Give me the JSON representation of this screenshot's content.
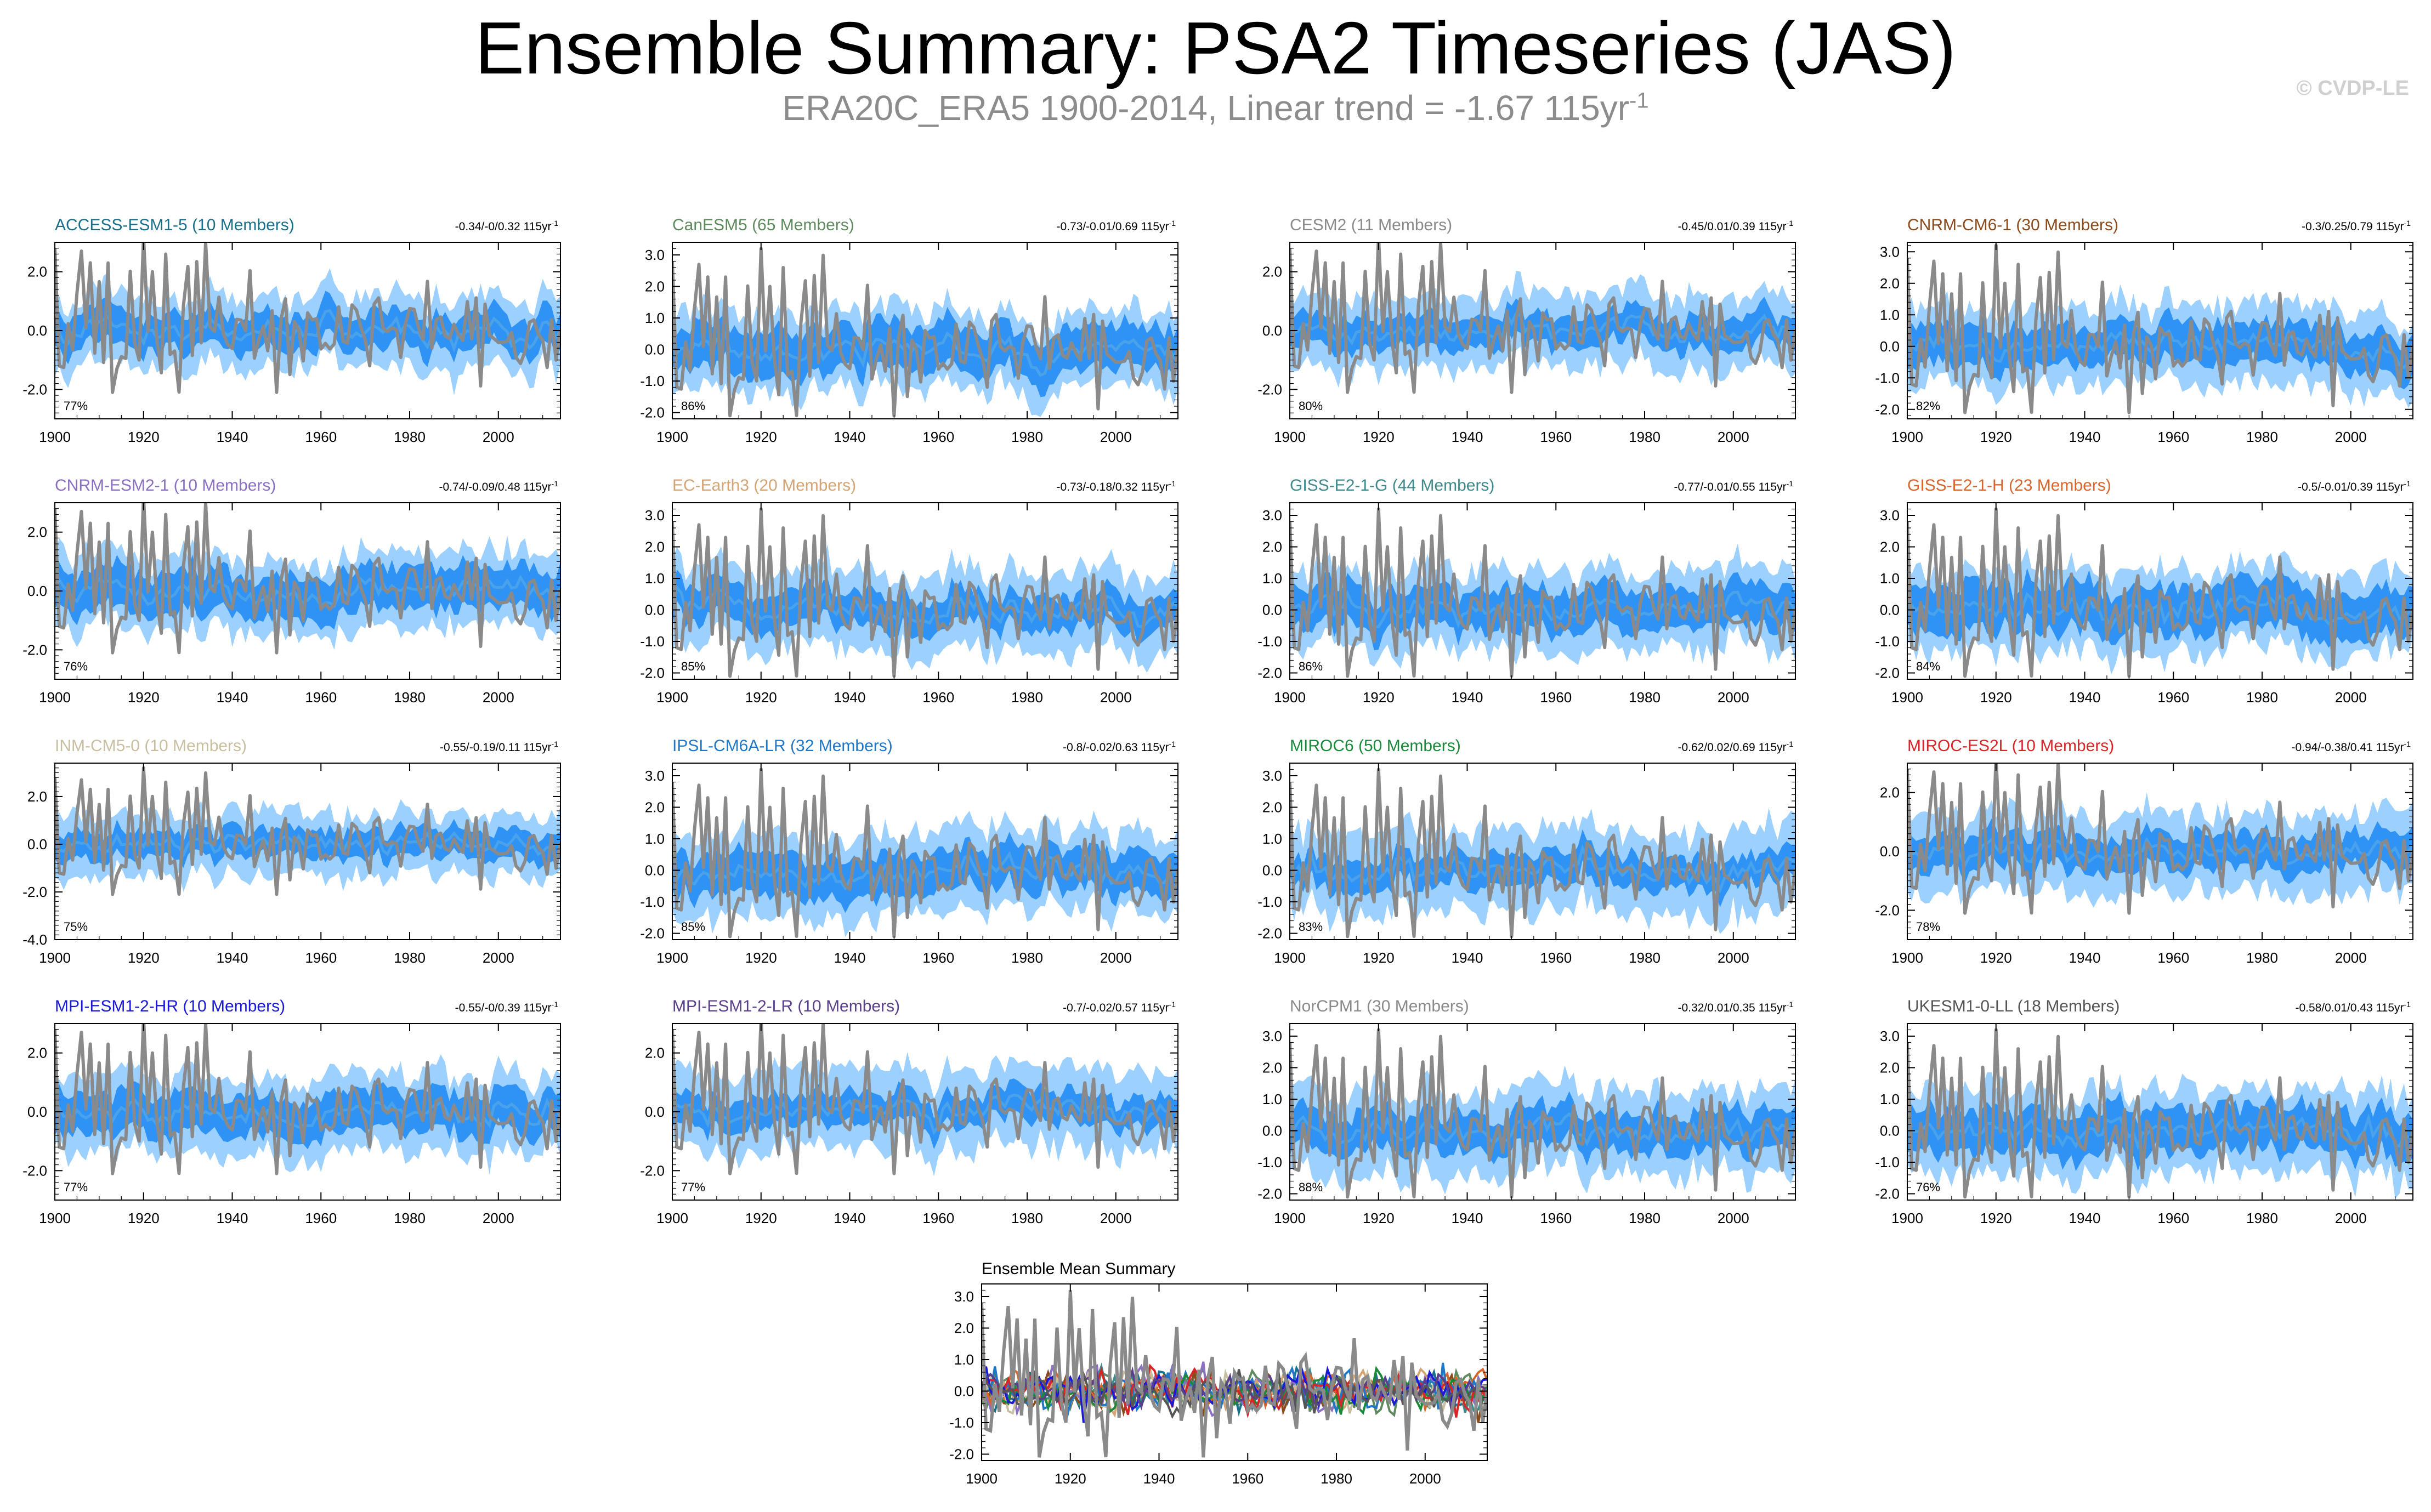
{
  "page": {
    "title": "Ensemble Summary: PSA2 Timeseries (JAS)",
    "subtitle_main": "ERA20C_ERA5 1900-2014, Linear trend = -1.67 115yr",
    "subtitle_exponent": "-1",
    "copyright": "© CVDP-LE"
  },
  "colors": {
    "observed": "#8a8a8a",
    "band_outer": "#9cd0ff",
    "band_inner": "#2f93f5",
    "ensemble_mean": "#4aa2ea"
  },
  "chart_data": [
    {
      "type": "area",
      "title": "ACCESS-ESM1-5 (10 Members)",
      "title_color": "#1a6f8a",
      "trend": "-0.34/-0/0.32 115yr",
      "trend_exponent": "-1",
      "percent": "77%",
      "ylim": [
        -3.0,
        3.0
      ],
      "yticks": [
        2.0,
        0.0,
        -2.0
      ],
      "ytick_labels": [
        "2.0",
        "0.0",
        "-2.0"
      ],
      "xlim": [
        1900,
        2014
      ],
      "xticks": [
        1900,
        1920,
        1940,
        1960,
        1980,
        2000
      ],
      "xtick_labels": [
        "1900",
        "1920",
        "1940",
        "1960",
        "1980",
        "2000"
      ],
      "series": [
        "observed PSA2 index (gray line)",
        "ensemble 10-90% range (light blue)",
        "ensemble 25-75% range (dark blue)",
        "ensemble mean (blue line)"
      ]
    },
    {
      "type": "area",
      "title": "CanESM5 (65 Members)",
      "title_color": "#5e8a5e",
      "trend": "-0.73/-0.01/0.69 115yr",
      "trend_exponent": "-1",
      "percent": "86%",
      "ylim": [
        -2.2,
        3.4
      ],
      "yticks": [
        3.0,
        2.0,
        1.0,
        0.0,
        -1.0,
        -2.0
      ],
      "ytick_labels": [
        "3.0",
        "2.0",
        "1.0",
        "0.0",
        "-1.0",
        "-2.0"
      ],
      "xlim": [
        1900,
        2014
      ],
      "xticks": [
        1900,
        1920,
        1940,
        1960,
        1980,
        2000
      ],
      "xtick_labels": [
        "1900",
        "1920",
        "1940",
        "1960",
        "1980",
        "2000"
      ],
      "series": [
        "observed PSA2 index (gray line)",
        "ensemble 10-90% range (light blue)",
        "ensemble 25-75% range (dark blue)",
        "ensemble mean (blue line)"
      ]
    },
    {
      "type": "area",
      "title": "CESM2 (11 Members)",
      "title_color": "#8a8a8a",
      "trend": "-0.45/0.01/0.39 115yr",
      "trend_exponent": "-1",
      "percent": "80%",
      "ylim": [
        -3.0,
        3.0
      ],
      "yticks": [
        2.0,
        0.0,
        -2.0
      ],
      "ytick_labels": [
        "2.0",
        "0.0",
        "-2.0"
      ],
      "xlim": [
        1900,
        2014
      ],
      "xticks": [
        1900,
        1920,
        1940,
        1960,
        1980,
        2000
      ],
      "xtick_labels": [
        "1900",
        "1920",
        "1940",
        "1960",
        "1980",
        "2000"
      ],
      "series": [
        "observed PSA2 index (gray line)",
        "ensemble 10-90% range (light blue)",
        "ensemble 25-75% range (dark blue)",
        "ensemble mean (blue line)"
      ]
    },
    {
      "type": "area",
      "title": "CNRM-CM6-1 (30 Members)",
      "title_color": "#8b4a1c",
      "trend": "-0.3/0.25/0.79 115yr",
      "trend_exponent": "-1",
      "percent": "82%",
      "ylim": [
        -2.3,
        3.3
      ],
      "yticks": [
        3.0,
        2.0,
        1.0,
        0.0,
        -1.0,
        -2.0
      ],
      "ytick_labels": [
        "3.0",
        "2.0",
        "1.0",
        "0.0",
        "-1.0",
        "-2.0"
      ],
      "xlim": [
        1900,
        2014
      ],
      "xticks": [
        1900,
        1920,
        1940,
        1960,
        1980,
        2000
      ],
      "xtick_labels": [
        "1900",
        "1920",
        "1940",
        "1960",
        "1980",
        "2000"
      ],
      "series": [
        "observed PSA2 index (gray line)",
        "ensemble 10-90% range (light blue)",
        "ensemble 25-75% range (dark blue)",
        "ensemble mean (blue line)"
      ]
    },
    {
      "type": "area",
      "title": "CNRM-ESM2-1 (10 Members)",
      "title_color": "#8a6fc2",
      "trend": "-0.74/-0.09/0.48 115yr",
      "trend_exponent": "-1",
      "percent": "76%",
      "ylim": [
        -3.0,
        3.0
      ],
      "yticks": [
        2.0,
        0.0,
        -2.0
      ],
      "ytick_labels": [
        "2.0",
        "0.0",
        "-2.0"
      ],
      "xlim": [
        1900,
        2014
      ],
      "xticks": [
        1900,
        1920,
        1940,
        1960,
        1980,
        2000
      ],
      "xtick_labels": [
        "1900",
        "1920",
        "1940",
        "1960",
        "1980",
        "2000"
      ],
      "series": [
        "observed PSA2 index (gray line)",
        "ensemble 10-90% range (light blue)",
        "ensemble 25-75% range (dark blue)",
        "ensemble mean (blue line)"
      ]
    },
    {
      "type": "area",
      "title": "EC-Earth3 (20 Members)",
      "title_color": "#d4a574",
      "trend": "-0.73/-0.18/0.32 115yr",
      "trend_exponent": "-1",
      "percent": "85%",
      "ylim": [
        -2.2,
        3.4
      ],
      "yticks": [
        3.0,
        2.0,
        1.0,
        0.0,
        -1.0,
        -2.0
      ],
      "ytick_labels": [
        "3.0",
        "2.0",
        "1.0",
        "0.0",
        "-1.0",
        "-2.0"
      ],
      "xlim": [
        1900,
        2014
      ],
      "xticks": [
        1900,
        1920,
        1940,
        1960,
        1980,
        2000
      ],
      "xtick_labels": [
        "1900",
        "1920",
        "1940",
        "1960",
        "1980",
        "2000"
      ],
      "series": [
        "observed PSA2 index (gray line)",
        "ensemble 10-90% range (light blue)",
        "ensemble 25-75% range (dark blue)",
        "ensemble mean (blue line)"
      ]
    },
    {
      "type": "area",
      "title": "GISS-E2-1-G (44 Members)",
      "title_color": "#3f8a8a",
      "trend": "-0.77/-0.01/0.55 115yr",
      "trend_exponent": "-1",
      "percent": "86%",
      "ylim": [
        -2.2,
        3.4
      ],
      "yticks": [
        3.0,
        2.0,
        1.0,
        0.0,
        -1.0,
        -2.0
      ],
      "ytick_labels": [
        "3.0",
        "2.0",
        "1.0",
        "0.0",
        "-1.0",
        "-2.0"
      ],
      "xlim": [
        1900,
        2014
      ],
      "xticks": [
        1900,
        1920,
        1940,
        1960,
        1980,
        2000
      ],
      "xtick_labels": [
        "1900",
        "1920",
        "1940",
        "1960",
        "1980",
        "2000"
      ],
      "series": [
        "observed PSA2 index (gray line)",
        "ensemble 10-90% range (light blue)",
        "ensemble 25-75% range (dark blue)",
        "ensemble mean (blue line)"
      ]
    },
    {
      "type": "area",
      "title": "GISS-E2-1-H (23 Members)",
      "title_color": "#d8662c",
      "trend": "-0.5/-0.01/0.39 115yr",
      "trend_exponent": "-1",
      "percent": "84%",
      "ylim": [
        -2.2,
        3.4
      ],
      "yticks": [
        3.0,
        2.0,
        1.0,
        0.0,
        -1.0,
        -2.0
      ],
      "ytick_labels": [
        "3.0",
        "2.0",
        "1.0",
        "0.0",
        "-1.0",
        "-2.0"
      ],
      "xlim": [
        1900,
        2014
      ],
      "xticks": [
        1900,
        1920,
        1940,
        1960,
        1980,
        2000
      ],
      "xtick_labels": [
        "1900",
        "1920",
        "1940",
        "1960",
        "1980",
        "2000"
      ],
      "series": [
        "observed PSA2 index (gray line)",
        "ensemble 10-90% range (light blue)",
        "ensemble 25-75% range (dark blue)",
        "ensemble mean (blue line)"
      ]
    },
    {
      "type": "area",
      "title": "INM-CM5-0 (10 Members)",
      "title_color": "#c8bfa0",
      "trend": "-0.55/-0.19/0.11 115yr",
      "trend_exponent": "-1",
      "percent": "75%",
      "ylim": [
        -4.0,
        3.4
      ],
      "yticks": [
        2.0,
        0.0,
        -2.0,
        -4.0
      ],
      "ytick_labels": [
        "2.0",
        "0.0",
        "-2.0",
        "-4.0"
      ],
      "xlim": [
        1900,
        2014
      ],
      "xticks": [
        1900,
        1920,
        1940,
        1960,
        1980,
        2000
      ],
      "xtick_labels": [
        "1900",
        "1920",
        "1940",
        "1960",
        "1980",
        "2000"
      ],
      "series": [
        "observed PSA2 index (gray line)",
        "ensemble 10-90% range (light blue)",
        "ensemble 25-75% range (dark blue)",
        "ensemble mean (blue line)"
      ]
    },
    {
      "type": "area",
      "title": "IPSL-CM6A-LR (32 Members)",
      "title_color": "#1f77c8",
      "trend": "-0.8/-0.02/0.63 115yr",
      "trend_exponent": "-1",
      "percent": "85%",
      "ylim": [
        -2.2,
        3.4
      ],
      "yticks": [
        3.0,
        2.0,
        1.0,
        0.0,
        -1.0,
        -2.0
      ],
      "ytick_labels": [
        "3.0",
        "2.0",
        "1.0",
        "0.0",
        "-1.0",
        "-2.0"
      ],
      "xlim": [
        1900,
        2014
      ],
      "xticks": [
        1900,
        1920,
        1940,
        1960,
        1980,
        2000
      ],
      "xtick_labels": [
        "1900",
        "1920",
        "1940",
        "1960",
        "1980",
        "2000"
      ],
      "series": [
        "observed PSA2 index (gray line)",
        "ensemble 10-90% range (light blue)",
        "ensemble 25-75% range (dark blue)",
        "ensemble mean (blue line)"
      ]
    },
    {
      "type": "area",
      "title": "MIROC6 (50 Members)",
      "title_color": "#1a8a3a",
      "trend": "-0.62/0.02/0.69 115yr",
      "trend_exponent": "-1",
      "percent": "83%",
      "ylim": [
        -2.2,
        3.4
      ],
      "yticks": [
        3.0,
        2.0,
        1.0,
        0.0,
        -1.0,
        -2.0
      ],
      "ytick_labels": [
        "3.0",
        "2.0",
        "1.0",
        "0.0",
        "-1.0",
        "-2.0"
      ],
      "xlim": [
        1900,
        2014
      ],
      "xticks": [
        1900,
        1920,
        1940,
        1960,
        1980,
        2000
      ],
      "xtick_labels": [
        "1900",
        "1920",
        "1940",
        "1960",
        "1980",
        "2000"
      ],
      "series": [
        "observed PSA2 index (gray line)",
        "ensemble 10-90% range (light blue)",
        "ensemble 25-75% range (dark blue)",
        "ensemble mean (blue line)"
      ]
    },
    {
      "type": "area",
      "title": "MIROC-ES2L (10 Members)",
      "title_color": "#d62728",
      "trend": "-0.94/-0.38/0.41 115yr",
      "trend_exponent": "-1",
      "percent": "78%",
      "ylim": [
        -3.0,
        3.0
      ],
      "yticks": [
        2.0,
        0.0,
        -2.0
      ],
      "ytick_labels": [
        "2.0",
        "0.0",
        "-2.0"
      ],
      "xlim": [
        1900,
        2014
      ],
      "xticks": [
        1900,
        1920,
        1940,
        1960,
        1980,
        2000
      ],
      "xtick_labels": [
        "1900",
        "1920",
        "1940",
        "1960",
        "1980",
        "2000"
      ],
      "series": [
        "observed PSA2 index (gray line)",
        "ensemble 10-90% range (light blue)",
        "ensemble 25-75% range (dark blue)",
        "ensemble mean (blue line)"
      ]
    },
    {
      "type": "area",
      "title": "MPI-ESM1-2-HR (10 Members)",
      "title_color": "#1a1ad6",
      "trend": "-0.55/-0/0.39 115yr",
      "trend_exponent": "-1",
      "percent": "77%",
      "ylim": [
        -3.0,
        3.0
      ],
      "yticks": [
        2.0,
        0.0,
        -2.0
      ],
      "ytick_labels": [
        "2.0",
        "0.0",
        "-2.0"
      ],
      "xlim": [
        1900,
        2014
      ],
      "xticks": [
        1900,
        1920,
        1940,
        1960,
        1980,
        2000
      ],
      "xtick_labels": [
        "1900",
        "1920",
        "1940",
        "1960",
        "1980",
        "2000"
      ],
      "series": [
        "observed PSA2 index (gray line)",
        "ensemble 10-90% range (light blue)",
        "ensemble 25-75% range (dark blue)",
        "ensemble mean (blue line)"
      ]
    },
    {
      "type": "area",
      "title": "MPI-ESM1-2-LR (10 Members)",
      "title_color": "#5a3f8a",
      "trend": "-0.7/-0.02/0.57 115yr",
      "trend_exponent": "-1",
      "percent": "77%",
      "ylim": [
        -3.0,
        3.0
      ],
      "yticks": [
        2.0,
        0.0,
        -2.0
      ],
      "ytick_labels": [
        "2.0",
        "0.0",
        "-2.0"
      ],
      "xlim": [
        1900,
        2014
      ],
      "xticks": [
        1900,
        1920,
        1940,
        1960,
        1980,
        2000
      ],
      "xtick_labels": [
        "1900",
        "1920",
        "1940",
        "1960",
        "1980",
        "2000"
      ],
      "series": [
        "observed PSA2 index (gray line)",
        "ensemble 10-90% range (light blue)",
        "ensemble 25-75% range (dark blue)",
        "ensemble mean (blue line)"
      ]
    },
    {
      "type": "area",
      "title": "NorCPM1 (30 Members)",
      "title_color": "#8a8a8a",
      "trend": "-0.32/0.01/0.35 115yr",
      "trend_exponent": "-1",
      "percent": "88%",
      "ylim": [
        -2.2,
        3.4
      ],
      "yticks": [
        3.0,
        2.0,
        1.0,
        0.0,
        -1.0,
        -2.0
      ],
      "ytick_labels": [
        "3.0",
        "2.0",
        "1.0",
        "0.0",
        "-1.0",
        "-2.0"
      ],
      "xlim": [
        1900,
        2014
      ],
      "xticks": [
        1900,
        1920,
        1940,
        1960,
        1980,
        2000
      ],
      "xtick_labels": [
        "1900",
        "1920",
        "1940",
        "1960",
        "1980",
        "2000"
      ],
      "series": [
        "observed PSA2 index (gray line)",
        "ensemble 10-90% range (light blue)",
        "ensemble 25-75% range (dark blue)",
        "ensemble mean (blue line)"
      ]
    },
    {
      "type": "area",
      "title": "UKESM1-0-LL (18 Members)",
      "title_color": "#555555",
      "trend": "-0.58/0.01/0.43 115yr",
      "trend_exponent": "-1",
      "percent": "76%",
      "ylim": [
        -2.2,
        3.4
      ],
      "yticks": [
        3.0,
        2.0,
        1.0,
        0.0,
        -1.0,
        -2.0
      ],
      "ytick_labels": [
        "3.0",
        "2.0",
        "1.0",
        "0.0",
        "-1.0",
        "-2.0"
      ],
      "xlim": [
        1900,
        2014
      ],
      "xticks": [
        1900,
        1920,
        1940,
        1960,
        1980,
        2000
      ],
      "xtick_labels": [
        "1900",
        "1920",
        "1940",
        "1960",
        "1980",
        "2000"
      ],
      "series": [
        "observed PSA2 index (gray line)",
        "ensemble 10-90% range (light blue)",
        "ensemble 25-75% range (dark blue)",
        "ensemble mean (blue line)"
      ]
    }
  ],
  "summary_chart": {
    "type": "line",
    "title": "Ensemble Mean Summary",
    "ylim": [
      -2.2,
      3.4
    ],
    "yticks": [
      3.0,
      2.0,
      1.0,
      0.0,
      -1.0,
      -2.0
    ],
    "ytick_labels": [
      "3.0",
      "2.0",
      "1.0",
      "0.0",
      "-1.0",
      "-2.0"
    ],
    "xlim": [
      1900,
      2014
    ],
    "xticks": [
      1900,
      1920,
      1940,
      1960,
      1980,
      2000
    ],
    "xtick_labels": [
      "1900",
      "1920",
      "1940",
      "1960",
      "1980",
      "2000"
    ],
    "series_colors": [
      "#1a6f8a",
      "#5e8a5e",
      "#8b4a1c",
      "#8a6fc2",
      "#d4a574",
      "#3f8a8a",
      "#d8662c",
      "#c8bfa0",
      "#1f77c8",
      "#1a8a3a",
      "#d62728",
      "#1a1ad6",
      "#5a3f8a",
      "#555555"
    ]
  }
}
